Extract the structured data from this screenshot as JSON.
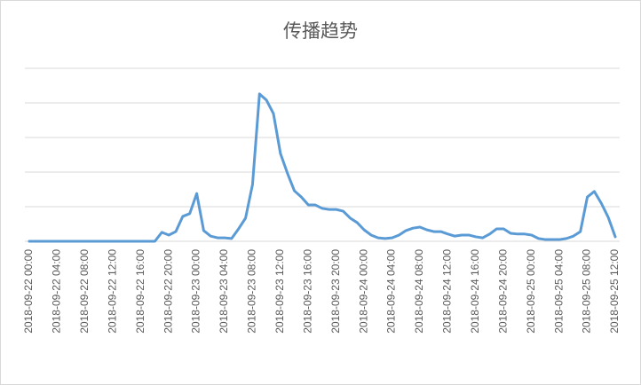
{
  "chart_data": {
    "type": "line",
    "title": "传播趋势",
    "categories": [
      "2018-09-22 00:00",
      null,
      null,
      null,
      "2018-09-22 04:00",
      null,
      null,
      null,
      "2018-09-22 08:00",
      null,
      null,
      null,
      "2018-09-22 12:00",
      null,
      null,
      null,
      "2018-09-22 16:00",
      null,
      null,
      null,
      "2018-09-22 20:00",
      null,
      null,
      null,
      "2018-09-23 00:00",
      null,
      null,
      null,
      "2018-09-23 04:00",
      null,
      null,
      null,
      "2018-09-23 08:00",
      null,
      null,
      null,
      "2018-09-23 12:00",
      null,
      null,
      null,
      "2018-09-23 16:00",
      null,
      null,
      null,
      "2018-09-23 20:00",
      null,
      null,
      null,
      "2018-09-24 00:00",
      null,
      null,
      null,
      "2018-09-24 04:00",
      null,
      null,
      null,
      "2018-09-24 08:00",
      null,
      null,
      null,
      "2018-09-24 12:00",
      null,
      null,
      null,
      "2018-09-24 16:00",
      null,
      null,
      null,
      "2018-09-24 20:00",
      null,
      null,
      null,
      "2018-09-25 00:00",
      null,
      null,
      null,
      "2018-09-25 04:00",
      null,
      null,
      null,
      "2018-09-25 08:00",
      null,
      null,
      null,
      "2018-09-25 12:00"
    ],
    "values": [
      0,
      0,
      0,
      0,
      0,
      0,
      0,
      0,
      0,
      0,
      0,
      0,
      0,
      0,
      0,
      0,
      0,
      0,
      0,
      0.26,
      0.18,
      0.28,
      0.72,
      0.8,
      1.38,
      0.31,
      0.15,
      0.1,
      0.1,
      0.08,
      0.36,
      0.67,
      1.64,
      4.26,
      4.08,
      3.69,
      2.54,
      1.97,
      1.46,
      1.28,
      1.05,
      1.05,
      0.95,
      0.92,
      0.92,
      0.87,
      0.67,
      0.54,
      0.33,
      0.18,
      0.1,
      0.08,
      0.1,
      0.18,
      0.31,
      0.38,
      0.41,
      0.33,
      0.28,
      0.28,
      0.21,
      0.15,
      0.18,
      0.18,
      0.13,
      0.1,
      0.21,
      0.36,
      0.36,
      0.23,
      0.21,
      0.21,
      0.18,
      0.08,
      0.05,
      0.05,
      0.05,
      0.08,
      0.15,
      0.28,
      1.28,
      1.44,
      1.1,
      0.69,
      0.13
    ],
    "color": "#5b9bd5",
    "ylim": [
      0,
      5
    ],
    "yticks": [
      0,
      1,
      2,
      3,
      4,
      5
    ],
    "grid": true
  }
}
